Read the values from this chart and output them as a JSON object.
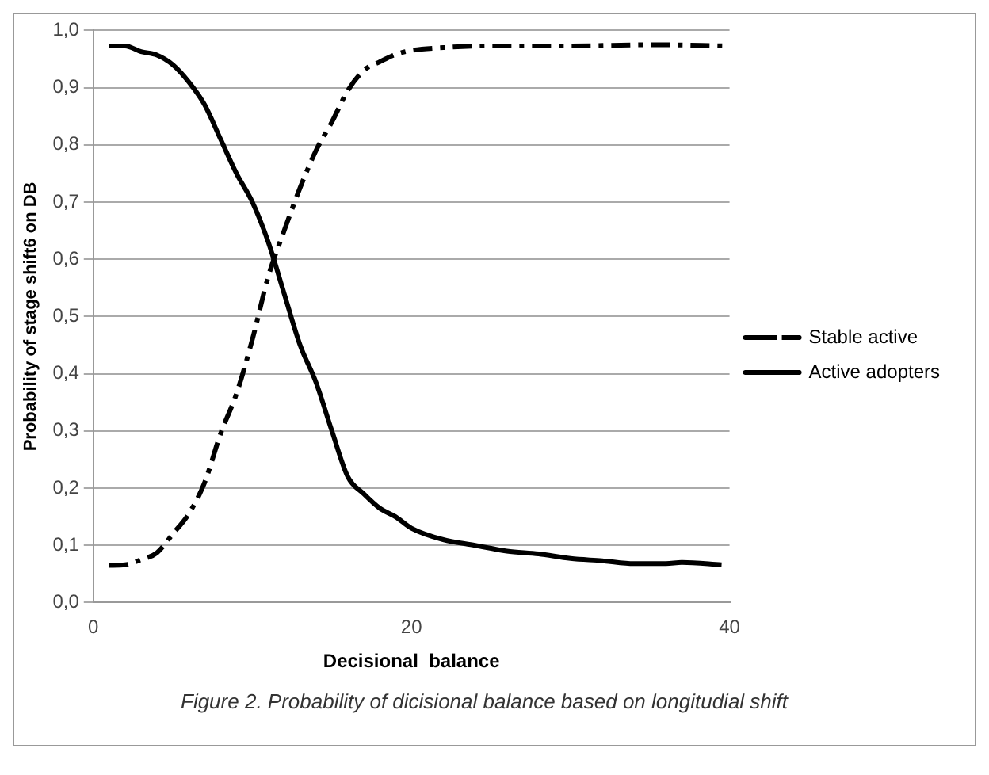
{
  "chart_data": {
    "type": "line",
    "xlabel": "Decisional  balance",
    "ylabel": "Probability of stage shift6 on DB",
    "annotations": [
      "Figure 2. Probability of dicisional balance based on longitudial shift"
    ],
    "series": [
      {
        "name": "Stable active",
        "color": "#000000",
        "line_style": "dashed",
        "x": [
          1,
          2,
          3,
          4,
          5,
          6,
          7,
          8,
          9,
          10,
          11,
          12,
          13,
          14,
          15,
          16,
          17,
          18,
          19,
          20,
          22,
          25,
          30,
          35,
          40
        ],
        "values": [
          0.065,
          0.066,
          0.075,
          0.087,
          0.12,
          0.155,
          0.21,
          0.295,
          0.365,
          0.46,
          0.57,
          0.65,
          0.725,
          0.79,
          0.84,
          0.895,
          0.93,
          0.945,
          0.958,
          0.965,
          0.97,
          0.973,
          0.973,
          0.975,
          0.973
        ]
      },
      {
        "name": "Active adopters",
        "color": "#000000",
        "line_style": "solid",
        "x": [
          1,
          2,
          3,
          4,
          5,
          6,
          7,
          8,
          9,
          10,
          11,
          12,
          13,
          14,
          15,
          16,
          17,
          18,
          19,
          20,
          22,
          24,
          26,
          28,
          30,
          32,
          34,
          36,
          37,
          39.5
        ],
        "values": [
          0.973,
          0.973,
          0.963,
          0.957,
          0.94,
          0.91,
          0.87,
          0.81,
          0.75,
          0.7,
          0.63,
          0.54,
          0.45,
          0.385,
          0.3,
          0.22,
          0.19,
          0.165,
          0.15,
          0.13,
          0.11,
          0.1,
          0.09,
          0.085,
          0.077,
          0.073,
          0.068,
          0.068,
          0.07,
          0.066
        ]
      }
    ],
    "xlim": [
      0,
      40
    ],
    "xticks": [
      0,
      20,
      40
    ],
    "ylim": [
      0,
      1
    ],
    "yticks": [
      {
        "value": 0,
        "label": "0,0"
      },
      {
        "value": 0.1,
        "label": "0,1"
      },
      {
        "value": 0.2,
        "label": "0,2"
      },
      {
        "value": 0.3,
        "label": "0,3"
      },
      {
        "value": 0.4,
        "label": "0,4"
      },
      {
        "value": 0.5,
        "label": "0,5"
      },
      {
        "value": 0.6,
        "label": "0,6"
      },
      {
        "value": 0.7,
        "label": "0,7"
      },
      {
        "value": 0.8,
        "label": "0,8"
      },
      {
        "value": 0.9,
        "label": "0,9"
      },
      {
        "value": 1,
        "label": "1,0"
      }
    ],
    "grid": "y",
    "legend": "right",
    "marker": "none"
  }
}
